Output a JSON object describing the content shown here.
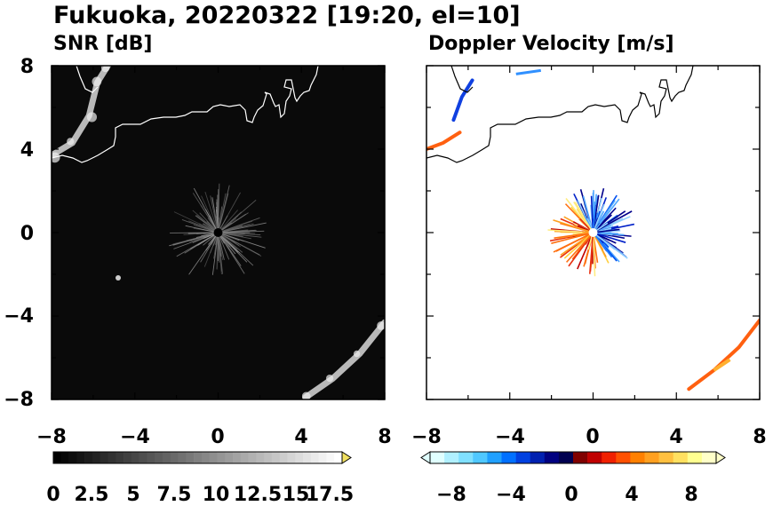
{
  "figure": {
    "title": "Fukuoka, 20220322 [19:20, el=10]"
  },
  "chart_data": [
    {
      "type": "heatmap",
      "title": "SNR [dB]",
      "xlim": [
        -8,
        8
      ],
      "ylim": [
        -8,
        8
      ],
      "x_ticks": [
        "−8",
        "−4",
        "0",
        "4",
        "8"
      ],
      "y_ticks": [
        "8",
        "4",
        "0",
        "−4",
        "−8"
      ],
      "background": "#0a0a0a",
      "radar_center": [
        0,
        0
      ],
      "colorbar": {
        "min": 0,
        "max": 18.5,
        "extend": "max",
        "tick_labels": [
          "0",
          "2.5",
          "5",
          "7.5",
          "10",
          "12.5",
          "15",
          "17.5"
        ]
      },
      "echo_bands": [
        {
          "name": "NW echo",
          "points": [
            [
              -8,
              3.7
            ],
            [
              -7,
              4.3
            ],
            [
              -6.2,
              5.6
            ],
            [
              -5.8,
              7.2
            ],
            [
              -5.3,
              8
            ]
          ]
        },
        {
          "name": "SE echo",
          "points": [
            [
              4.2,
              -7.9
            ],
            [
              5.5,
              -7
            ],
            [
              6.8,
              -5.8
            ],
            [
              8,
              -4.3
            ]
          ]
        }
      ]
    },
    {
      "type": "heatmap",
      "title": "Doppler Velocity [m/s]",
      "xlim": [
        -8,
        8
      ],
      "ylim": [
        -8,
        8
      ],
      "x_ticks": [
        "−8",
        "−4",
        "0",
        "4",
        "8"
      ],
      "y_ticks": [
        "8",
        "4",
        "0",
        "−4",
        "−8"
      ],
      "background": "#ffffff",
      "colorbar": {
        "min": -10,
        "max": 10,
        "extend": "both",
        "tick_labels": [
          "−8",
          "−4",
          "0",
          "4",
          "8"
        ]
      },
      "echo_bands": [
        {
          "name": "NW approaching",
          "sign": "negative",
          "points": [
            [
              -6.7,
              5.4
            ],
            [
              -6.3,
              6.5
            ],
            [
              -5.8,
              7.3
            ]
          ]
        },
        {
          "name": "W receding",
          "sign": "positive",
          "points": [
            [
              -8,
              4.0
            ],
            [
              -7.2,
              4.3
            ],
            [
              -6.4,
              4.8
            ]
          ]
        },
        {
          "name": "SE receding",
          "sign": "positive",
          "points": [
            [
              4.6,
              -7.5
            ],
            [
              5.8,
              -6.6
            ],
            [
              7.0,
              -5.5
            ],
            [
              8,
              -4.2
            ]
          ]
        }
      ]
    }
  ]
}
